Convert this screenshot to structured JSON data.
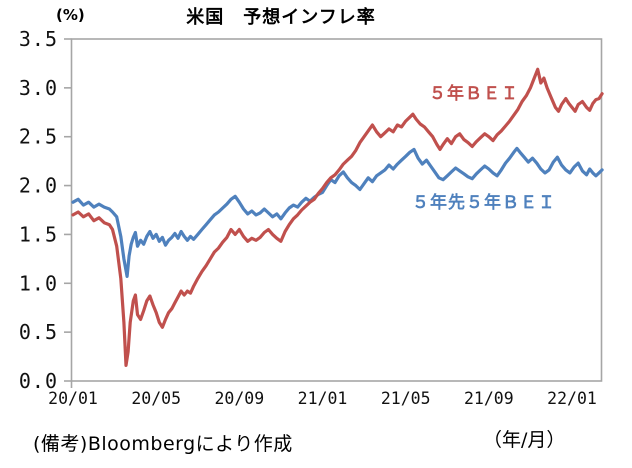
{
  "header": {
    "y_unit_label": "(%)",
    "x_unit_label": "（年/月）",
    "source_note": "(備考)Bloombergにより作成"
  },
  "colors": {
    "bei_5y": "#C0504D",
    "bei_5y5y": "#4F81BD",
    "axis": "#A6A6A6",
    "text": "#000000"
  },
  "chart_data": {
    "type": "line",
    "title": "米国　予想インフレ率",
    "ylabel": "%",
    "xlabel": "年/月",
    "grid": false,
    "legend_position": "inline-annotations",
    "x_axis": {
      "tick_labels": [
        "20/01",
        "20/05",
        "20/09",
        "21/01",
        "21/05",
        "21/09",
        "22/01"
      ],
      "tick_months": [
        0,
        4,
        8,
        12,
        16,
        20,
        24
      ],
      "xlim_months": [
        0,
        25.45
      ],
      "note": "x = months elapsed since 2020/01"
    },
    "y_axis": {
      "tick_labels": [
        "0.0",
        "0.5",
        "1.0",
        "1.5",
        "2.0",
        "2.5",
        "3.0",
        "3.5"
      ],
      "tick_values": [
        0,
        0.5,
        1.0,
        1.5,
        2.0,
        2.5,
        3.0,
        3.5
      ],
      "ylim": [
        0,
        3.5
      ]
    },
    "series": [
      {
        "name": "５年ＢＥＩ",
        "color": "#C0504D",
        "points": [
          [
            0.0,
            1.7
          ],
          [
            0.25,
            1.73
          ],
          [
            0.5,
            1.68
          ],
          [
            0.75,
            1.71
          ],
          [
            1.0,
            1.64
          ],
          [
            1.25,
            1.67
          ],
          [
            1.5,
            1.62
          ],
          [
            1.75,
            1.6
          ],
          [
            1.9,
            1.55
          ],
          [
            2.1,
            1.38
          ],
          [
            2.3,
            1.05
          ],
          [
            2.45,
            0.6
          ],
          [
            2.55,
            0.16
          ],
          [
            2.65,
            0.3
          ],
          [
            2.75,
            0.6
          ],
          [
            2.9,
            0.82
          ],
          [
            3.0,
            0.88
          ],
          [
            3.1,
            0.68
          ],
          [
            3.25,
            0.63
          ],
          [
            3.4,
            0.72
          ],
          [
            3.55,
            0.82
          ],
          [
            3.7,
            0.87
          ],
          [
            3.85,
            0.78
          ],
          [
            4.0,
            0.7
          ],
          [
            4.15,
            0.6
          ],
          [
            4.3,
            0.55
          ],
          [
            4.45,
            0.63
          ],
          [
            4.6,
            0.7
          ],
          [
            4.75,
            0.74
          ],
          [
            4.9,
            0.8
          ],
          [
            5.05,
            0.86
          ],
          [
            5.2,
            0.92
          ],
          [
            5.35,
            0.88
          ],
          [
            5.5,
            0.92
          ],
          [
            5.65,
            0.9
          ],
          [
            5.8,
            0.97
          ],
          [
            6.0,
            1.05
          ],
          [
            6.2,
            1.12
          ],
          [
            6.4,
            1.18
          ],
          [
            6.6,
            1.25
          ],
          [
            6.8,
            1.32
          ],
          [
            7.0,
            1.36
          ],
          [
            7.2,
            1.42
          ],
          [
            7.4,
            1.47
          ],
          [
            7.6,
            1.55
          ],
          [
            7.8,
            1.5
          ],
          [
            8.0,
            1.55
          ],
          [
            8.2,
            1.48
          ],
          [
            8.4,
            1.43
          ],
          [
            8.6,
            1.46
          ],
          [
            8.8,
            1.44
          ],
          [
            9.0,
            1.47
          ],
          [
            9.2,
            1.52
          ],
          [
            9.4,
            1.55
          ],
          [
            9.6,
            1.5
          ],
          [
            9.8,
            1.46
          ],
          [
            10.0,
            1.43
          ],
          [
            10.2,
            1.53
          ],
          [
            10.4,
            1.6
          ],
          [
            10.6,
            1.66
          ],
          [
            10.8,
            1.7
          ],
          [
            11.0,
            1.75
          ],
          [
            11.2,
            1.79
          ],
          [
            11.4,
            1.83
          ],
          [
            11.6,
            1.86
          ],
          [
            11.8,
            1.92
          ],
          [
            12.0,
            1.97
          ],
          [
            12.2,
            2.03
          ],
          [
            12.4,
            2.08
          ],
          [
            12.6,
            2.11
          ],
          [
            12.8,
            2.16
          ],
          [
            13.0,
            2.22
          ],
          [
            13.2,
            2.26
          ],
          [
            13.4,
            2.3
          ],
          [
            13.6,
            2.36
          ],
          [
            13.8,
            2.44
          ],
          [
            14.0,
            2.5
          ],
          [
            14.2,
            2.56
          ],
          [
            14.4,
            2.62
          ],
          [
            14.6,
            2.55
          ],
          [
            14.8,
            2.5
          ],
          [
            15.0,
            2.54
          ],
          [
            15.2,
            2.58
          ],
          [
            15.4,
            2.55
          ],
          [
            15.6,
            2.62
          ],
          [
            15.8,
            2.6
          ],
          [
            16.0,
            2.66
          ],
          [
            16.2,
            2.7
          ],
          [
            16.35,
            2.73
          ],
          [
            16.5,
            2.68
          ],
          [
            16.7,
            2.63
          ],
          [
            16.9,
            2.6
          ],
          [
            17.1,
            2.55
          ],
          [
            17.3,
            2.5
          ],
          [
            17.5,
            2.42
          ],
          [
            17.65,
            2.37
          ],
          [
            17.8,
            2.42
          ],
          [
            18.0,
            2.48
          ],
          [
            18.2,
            2.43
          ],
          [
            18.4,
            2.5
          ],
          [
            18.6,
            2.53
          ],
          [
            18.8,
            2.47
          ],
          [
            19.0,
            2.44
          ],
          [
            19.2,
            2.4
          ],
          [
            19.4,
            2.45
          ],
          [
            19.6,
            2.49
          ],
          [
            19.8,
            2.53
          ],
          [
            20.0,
            2.5
          ],
          [
            20.2,
            2.46
          ],
          [
            20.4,
            2.52
          ],
          [
            20.6,
            2.56
          ],
          [
            20.8,
            2.61
          ],
          [
            21.0,
            2.66
          ],
          [
            21.2,
            2.72
          ],
          [
            21.4,
            2.78
          ],
          [
            21.6,
            2.86
          ],
          [
            21.8,
            2.92
          ],
          [
            22.0,
            3.0
          ],
          [
            22.15,
            3.08
          ],
          [
            22.35,
            3.19
          ],
          [
            22.5,
            3.05
          ],
          [
            22.65,
            3.1
          ],
          [
            22.8,
            3.0
          ],
          [
            23.0,
            2.9
          ],
          [
            23.2,
            2.8
          ],
          [
            23.35,
            2.76
          ],
          [
            23.5,
            2.83
          ],
          [
            23.7,
            2.89
          ],
          [
            23.85,
            2.84
          ],
          [
            24.0,
            2.8
          ],
          [
            24.15,
            2.76
          ],
          [
            24.3,
            2.83
          ],
          [
            24.5,
            2.86
          ],
          [
            24.7,
            2.8
          ],
          [
            24.85,
            2.77
          ],
          [
            25.0,
            2.84
          ],
          [
            25.15,
            2.88
          ],
          [
            25.3,
            2.89
          ],
          [
            25.45,
            2.94
          ]
        ]
      },
      {
        "name": "５年先５年ＢＥＩ",
        "color": "#4F81BD",
        "points": [
          [
            0.0,
            1.83
          ],
          [
            0.25,
            1.86
          ],
          [
            0.5,
            1.8
          ],
          [
            0.75,
            1.83
          ],
          [
            1.0,
            1.78
          ],
          [
            1.25,
            1.81
          ],
          [
            1.5,
            1.78
          ],
          [
            1.75,
            1.76
          ],
          [
            1.9,
            1.73
          ],
          [
            2.1,
            1.68
          ],
          [
            2.3,
            1.48
          ],
          [
            2.45,
            1.25
          ],
          [
            2.6,
            1.07
          ],
          [
            2.7,
            1.28
          ],
          [
            2.8,
            1.4
          ],
          [
            2.9,
            1.47
          ],
          [
            3.0,
            1.52
          ],
          [
            3.1,
            1.38
          ],
          [
            3.25,
            1.44
          ],
          [
            3.4,
            1.4
          ],
          [
            3.55,
            1.48
          ],
          [
            3.7,
            1.53
          ],
          [
            3.85,
            1.46
          ],
          [
            4.0,
            1.5
          ],
          [
            4.15,
            1.43
          ],
          [
            4.3,
            1.47
          ],
          [
            4.45,
            1.39
          ],
          [
            4.6,
            1.44
          ],
          [
            4.75,
            1.47
          ],
          [
            4.9,
            1.51
          ],
          [
            5.05,
            1.46
          ],
          [
            5.2,
            1.53
          ],
          [
            5.35,
            1.48
          ],
          [
            5.5,
            1.44
          ],
          [
            5.65,
            1.48
          ],
          [
            5.8,
            1.45
          ],
          [
            6.0,
            1.5
          ],
          [
            6.2,
            1.55
          ],
          [
            6.4,
            1.6
          ],
          [
            6.6,
            1.65
          ],
          [
            6.8,
            1.7
          ],
          [
            7.0,
            1.73
          ],
          [
            7.2,
            1.77
          ],
          [
            7.4,
            1.81
          ],
          [
            7.6,
            1.86
          ],
          [
            7.8,
            1.89
          ],
          [
            8.0,
            1.83
          ],
          [
            8.2,
            1.76
          ],
          [
            8.4,
            1.71
          ],
          [
            8.6,
            1.74
          ],
          [
            8.8,
            1.7
          ],
          [
            9.0,
            1.72
          ],
          [
            9.2,
            1.76
          ],
          [
            9.4,
            1.72
          ],
          [
            9.6,
            1.68
          ],
          [
            9.8,
            1.71
          ],
          [
            10.0,
            1.66
          ],
          [
            10.2,
            1.72
          ],
          [
            10.4,
            1.77
          ],
          [
            10.6,
            1.8
          ],
          [
            10.8,
            1.78
          ],
          [
            11.0,
            1.83
          ],
          [
            11.2,
            1.87
          ],
          [
            11.4,
            1.84
          ],
          [
            11.6,
            1.88
          ],
          [
            11.8,
            1.91
          ],
          [
            12.0,
            1.93
          ],
          [
            12.2,
            2.0
          ],
          [
            12.4,
            2.06
          ],
          [
            12.6,
            2.03
          ],
          [
            12.8,
            2.1
          ],
          [
            13.0,
            2.14
          ],
          [
            13.2,
            2.08
          ],
          [
            13.4,
            2.03
          ],
          [
            13.6,
            2.0
          ],
          [
            13.8,
            1.96
          ],
          [
            14.0,
            2.02
          ],
          [
            14.2,
            2.08
          ],
          [
            14.4,
            2.04
          ],
          [
            14.6,
            2.1
          ],
          [
            14.8,
            2.13
          ],
          [
            15.0,
            2.16
          ],
          [
            15.2,
            2.21
          ],
          [
            15.4,
            2.17
          ],
          [
            15.6,
            2.22
          ],
          [
            15.8,
            2.26
          ],
          [
            16.0,
            2.3
          ],
          [
            16.2,
            2.34
          ],
          [
            16.4,
            2.37
          ],
          [
            16.6,
            2.28
          ],
          [
            16.8,
            2.22
          ],
          [
            17.0,
            2.26
          ],
          [
            17.2,
            2.2
          ],
          [
            17.4,
            2.14
          ],
          [
            17.6,
            2.08
          ],
          [
            17.8,
            2.06
          ],
          [
            18.0,
            2.1
          ],
          [
            18.2,
            2.14
          ],
          [
            18.4,
            2.18
          ],
          [
            18.6,
            2.15
          ],
          [
            18.8,
            2.12
          ],
          [
            19.0,
            2.09
          ],
          [
            19.2,
            2.07
          ],
          [
            19.4,
            2.12
          ],
          [
            19.6,
            2.16
          ],
          [
            19.8,
            2.2
          ],
          [
            20.0,
            2.17
          ],
          [
            20.2,
            2.13
          ],
          [
            20.4,
            2.1
          ],
          [
            20.6,
            2.16
          ],
          [
            20.8,
            2.23
          ],
          [
            21.0,
            2.28
          ],
          [
            21.2,
            2.34
          ],
          [
            21.35,
            2.38
          ],
          [
            21.5,
            2.34
          ],
          [
            21.7,
            2.29
          ],
          [
            21.9,
            2.24
          ],
          [
            22.1,
            2.28
          ],
          [
            22.3,
            2.23
          ],
          [
            22.5,
            2.17
          ],
          [
            22.7,
            2.13
          ],
          [
            22.9,
            2.16
          ],
          [
            23.1,
            2.24
          ],
          [
            23.3,
            2.29
          ],
          [
            23.5,
            2.21
          ],
          [
            23.7,
            2.16
          ],
          [
            23.9,
            2.13
          ],
          [
            24.1,
            2.19
          ],
          [
            24.3,
            2.23
          ],
          [
            24.5,
            2.15
          ],
          [
            24.7,
            2.11
          ],
          [
            24.85,
            2.17
          ],
          [
            25.0,
            2.13
          ],
          [
            25.15,
            2.1
          ],
          [
            25.3,
            2.13
          ],
          [
            25.45,
            2.16
          ]
        ]
      }
    ]
  }
}
